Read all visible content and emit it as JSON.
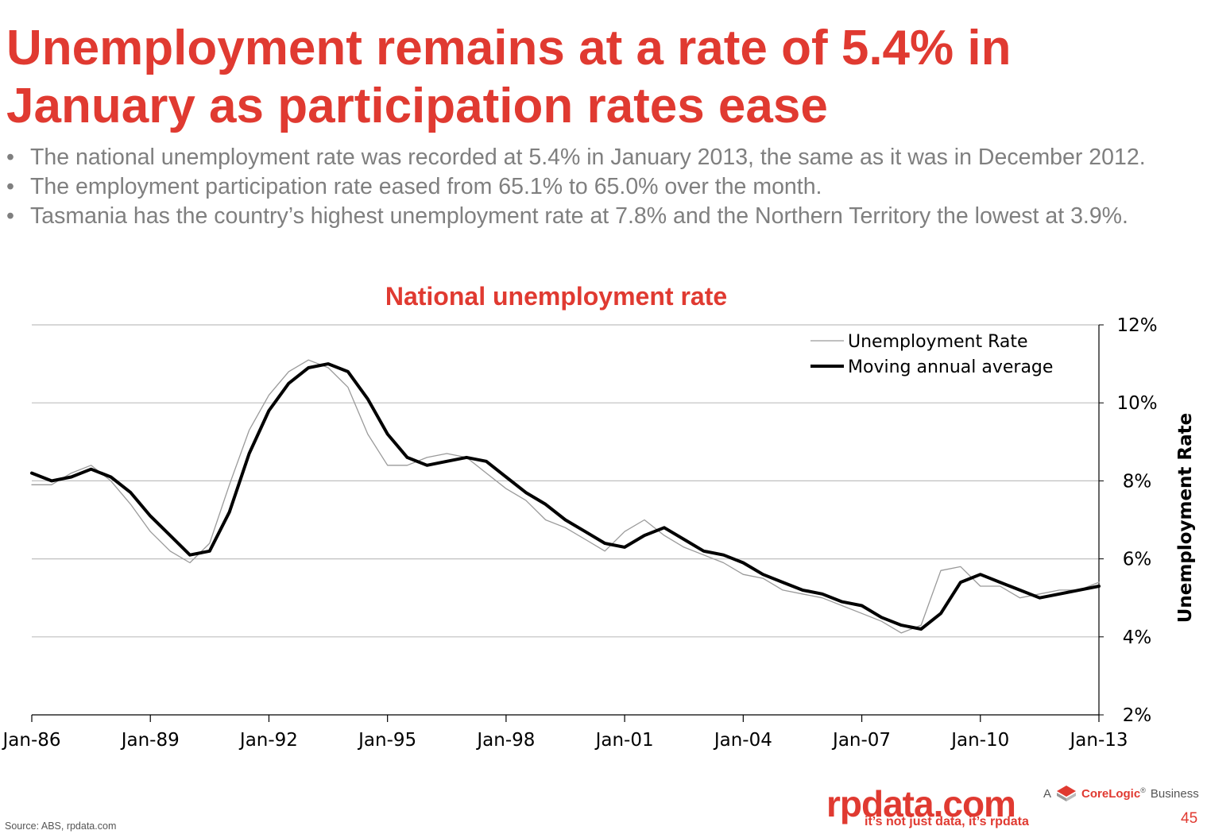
{
  "slide": {
    "title": "Unemployment remains at a rate of 5.4% in January as participation rates ease",
    "bullets": [
      "The national unemployment rate was recorded at 5.4% in January 2013, the same as it was in December 2012.",
      "The employment participation rate eased from 65.1% to 65.0% over the month.",
      "Tasmania has the country’s highest unemployment rate at 7.8% and the Northern Territory the lowest at 3.9%."
    ],
    "bullet_char": "•",
    "source": "Source:  ABS, rpdata.com",
    "page_number": "45"
  },
  "branding": {
    "logo": "rpdata.com",
    "tagline": "it’s not just data, it’s rpdata",
    "corelogic_prefix": "A",
    "corelogic_name": "CoreLogic",
    "corelogic_mark": "®",
    "corelogic_suffix": "Business"
  },
  "colors": {
    "accent": "#e03a31",
    "bullet_text": "#7f7f7f",
    "monthly_line": "#9a9a9a",
    "average_line": "#000000",
    "gridline": "#bfbfbf"
  },
  "chart_data": {
    "type": "line",
    "title": "National unemployment rate",
    "ylabel": "Unemployment Rate",
    "xlabel": "",
    "y_axis_position": "right",
    "ylim": [
      2,
      12
    ],
    "yticks": [
      2,
      4,
      6,
      8,
      10,
      12
    ],
    "ytick_labels": [
      "2%",
      "4%",
      "6%",
      "8%",
      "10%",
      "12%"
    ],
    "xlim": [
      1986.0,
      2013.0
    ],
    "xticks": [
      1986,
      1989,
      1992,
      1995,
      1998,
      2001,
      2004,
      2007,
      2010,
      2013
    ],
    "xtick_labels": [
      "Jan-86",
      "Jan-89",
      "Jan-92",
      "Jan-95",
      "Jan-98",
      "Jan-01",
      "Jan-04",
      "Jan-07",
      "Jan-10",
      "Jan-13"
    ],
    "grid": true,
    "legend": "top-right",
    "series": [
      {
        "name": "Unemployment Rate",
        "style": "thin-grey",
        "x": [
          1986.0,
          1986.5,
          1987.0,
          1987.5,
          1988.0,
          1988.5,
          1989.0,
          1989.5,
          1990.0,
          1990.5,
          1991.0,
          1991.5,
          1992.0,
          1992.5,
          1993.0,
          1993.5,
          1994.0,
          1994.5,
          1995.0,
          1995.5,
          1996.0,
          1996.5,
          1997.0,
          1997.5,
          1998.0,
          1998.5,
          1999.0,
          1999.5,
          2000.0,
          2000.5,
          2001.0,
          2001.5,
          2002.0,
          2002.5,
          2003.0,
          2003.5,
          2004.0,
          2004.5,
          2005.0,
          2005.5,
          2006.0,
          2006.5,
          2007.0,
          2007.5,
          2008.0,
          2008.5,
          2009.0,
          2009.5,
          2010.0,
          2010.5,
          2011.0,
          2011.5,
          2012.0,
          2012.5,
          2013.0
        ],
        "values": [
          7.9,
          7.9,
          8.2,
          8.4,
          8.0,
          7.4,
          6.7,
          6.2,
          5.9,
          6.4,
          7.9,
          9.3,
          10.2,
          10.8,
          11.1,
          10.9,
          10.4,
          9.2,
          8.4,
          8.4,
          8.6,
          8.7,
          8.6,
          8.2,
          7.8,
          7.5,
          7.0,
          6.8,
          6.5,
          6.2,
          6.7,
          7.0,
          6.6,
          6.3,
          6.1,
          5.9,
          5.6,
          5.5,
          5.2,
          5.1,
          5.0,
          4.8,
          4.6,
          4.4,
          4.1,
          4.3,
          5.7,
          5.8,
          5.3,
          5.3,
          5.0,
          5.1,
          5.2,
          5.2,
          5.4
        ]
      },
      {
        "name": "Moving annual average",
        "style": "thick-black",
        "x": [
          1986.0,
          1986.5,
          1987.0,
          1987.5,
          1988.0,
          1988.5,
          1989.0,
          1989.5,
          1990.0,
          1990.5,
          1991.0,
          1991.5,
          1992.0,
          1992.5,
          1993.0,
          1993.5,
          1994.0,
          1994.5,
          1995.0,
          1995.5,
          1996.0,
          1996.5,
          1997.0,
          1997.5,
          1998.0,
          1998.5,
          1999.0,
          1999.5,
          2000.0,
          2000.5,
          2001.0,
          2001.5,
          2002.0,
          2002.5,
          2003.0,
          2003.5,
          2004.0,
          2004.5,
          2005.0,
          2005.5,
          2006.0,
          2006.5,
          2007.0,
          2007.5,
          2008.0,
          2008.5,
          2009.0,
          2009.5,
          2010.0,
          2010.5,
          2011.0,
          2011.5,
          2012.0,
          2012.5,
          2013.0
        ],
        "values": [
          8.2,
          8.0,
          8.1,
          8.3,
          8.1,
          7.7,
          7.1,
          6.6,
          6.1,
          6.2,
          7.2,
          8.7,
          9.8,
          10.5,
          10.9,
          11.0,
          10.8,
          10.1,
          9.2,
          8.6,
          8.4,
          8.5,
          8.6,
          8.5,
          8.1,
          7.7,
          7.4,
          7.0,
          6.7,
          6.4,
          6.3,
          6.6,
          6.8,
          6.5,
          6.2,
          6.1,
          5.9,
          5.6,
          5.4,
          5.2,
          5.1,
          4.9,
          4.8,
          4.5,
          4.3,
          4.2,
          4.6,
          5.4,
          5.6,
          5.4,
          5.2,
          5.0,
          5.1,
          5.2,
          5.3
        ]
      }
    ]
  }
}
